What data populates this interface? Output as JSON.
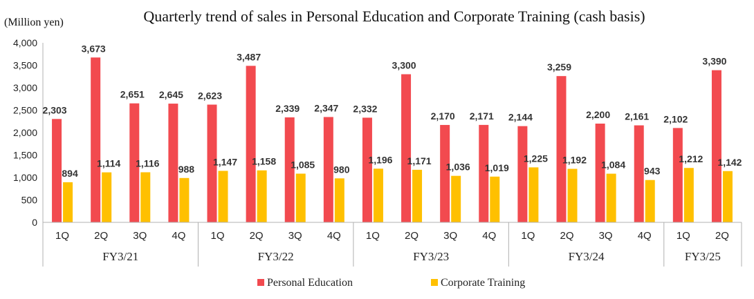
{
  "chart_data": {
    "type": "bar",
    "title": "Quarterly trend of sales in Personal Education and Corporate Training (cash basis)",
    "ylabel": "(Million yen)",
    "ylim": [
      0,
      4000
    ],
    "yticks": [
      "0",
      "500",
      "1,000",
      "1,500",
      "2,000",
      "2,500",
      "3,000",
      "3,500",
      "4,000"
    ],
    "legend_position": "bottom",
    "categories": [
      "1Q",
      "2Q",
      "3Q",
      "4Q",
      "1Q",
      "2Q",
      "3Q",
      "4Q",
      "1Q",
      "2Q",
      "3Q",
      "4Q",
      "1Q",
      "2Q",
      "3Q",
      "4Q",
      "1Q",
      "2Q"
    ],
    "groups": [
      {
        "label": "FY3/21",
        "count": 4
      },
      {
        "label": "FY3/22",
        "count": 4
      },
      {
        "label": "FY3/23",
        "count": 4
      },
      {
        "label": "FY3/24",
        "count": 4
      },
      {
        "label": "FY3/25",
        "count": 2
      }
    ],
    "series": [
      {
        "name": "Personal Education",
        "color": "#f24a4f",
        "values": [
          2303,
          3673,
          2651,
          2645,
          2623,
          3487,
          2339,
          2347,
          2332,
          3300,
          2170,
          2171,
          2144,
          3259,
          2200,
          2161,
          2102,
          3390
        ],
        "labels": [
          "2,303",
          "3,673",
          "2,651",
          "2,645",
          "2,623",
          "3,487",
          "2,339",
          "2,347",
          "2,332",
          "3,300",
          "2,170",
          "2,171",
          "2,144",
          "3,259",
          "2,200",
          "2,161",
          "2,102",
          "3,390"
        ]
      },
      {
        "name": "Corporate Training",
        "color": "#ffc000",
        "values": [
          894,
          1114,
          1116,
          988,
          1147,
          1158,
          1085,
          980,
          1196,
          1171,
          1036,
          1019,
          1225,
          1192,
          1084,
          943,
          1212,
          1142
        ],
        "labels": [
          "894",
          "1,114",
          "1,116",
          "988",
          "1,147",
          "1,158",
          "1,085",
          "980",
          "1,196",
          "1,171",
          "1,036",
          "1,019",
          "1,225",
          "1,192",
          "1,084",
          "943",
          "1,212",
          "1,142"
        ]
      }
    ]
  }
}
